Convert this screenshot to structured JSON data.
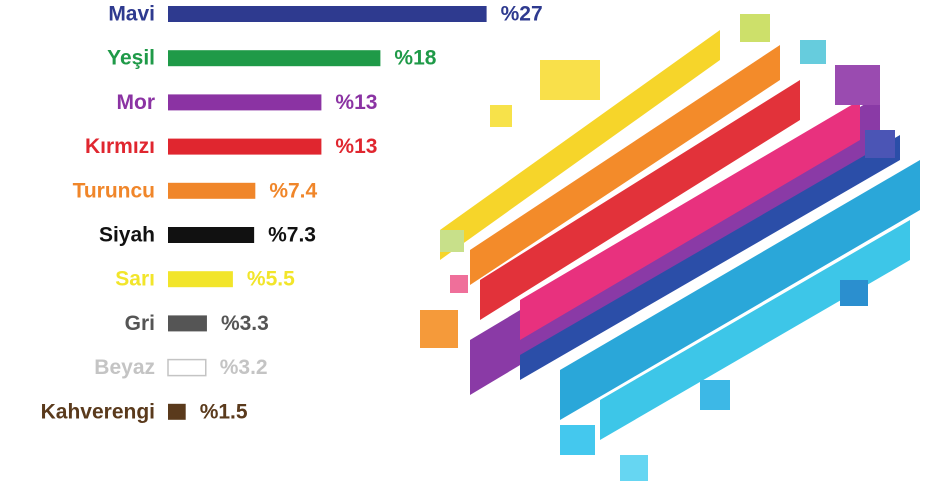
{
  "chart_data": {
    "type": "bar",
    "orientation": "horizontal",
    "categories": [
      "Mavi",
      "Yeşil",
      "Mor",
      "Kırmızı",
      "Turuncu",
      "Siyah",
      "Sarı",
      "Gri",
      "Beyaz",
      "Kahverengi"
    ],
    "values": [
      27,
      18,
      13,
      13,
      7.4,
      7.3,
      5.5,
      3.3,
      3.2,
      1.5
    ],
    "value_labels": [
      "%27",
      "%18",
      "%13",
      "%13",
      "%7.4",
      "%7.3",
      "%5.5",
      "%3.3",
      "%3.2",
      "%1.5"
    ],
    "colors": [
      "#2e3a8f",
      "#1f9a48",
      "#8b33a3",
      "#e0262f",
      "#f0862a",
      "#111111",
      "#f2e52a",
      "#555555",
      "#ffffff",
      "#5a3a1c"
    ],
    "label_colors": [
      "#2e3a8f",
      "#1f9a48",
      "#8b33a3",
      "#e0262f",
      "#f0862a",
      "#111111",
      "#f2e52a",
      "#555555",
      "#c4c4c4",
      "#5a3a1c"
    ]
  }
}
